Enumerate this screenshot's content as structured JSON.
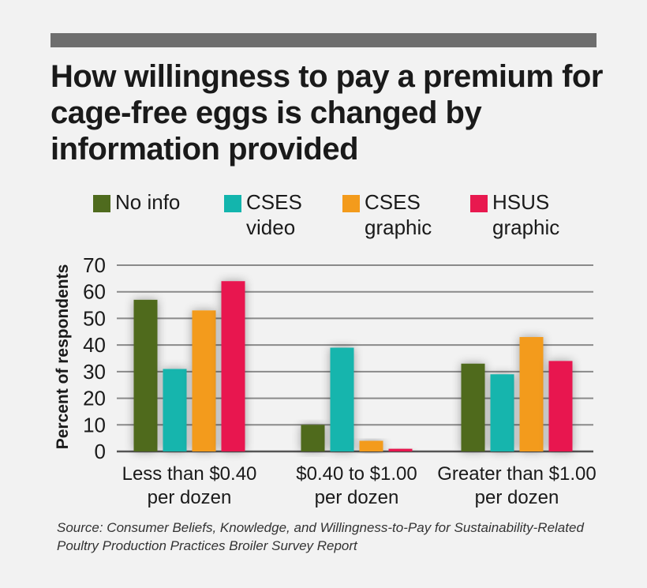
{
  "title": "How willingness to pay a premium for cage-free eggs is changed by information provided",
  "source": "Source: Consumer Beliefs, Knowledge, and Willingness-to-Pay for Sustainability-Related Poultry Production Practices Broiler Survey Report",
  "colors": {
    "no_info": "#4f6b1e",
    "cses_video": "#13b5ad",
    "cses_graphic": "#f39b1c",
    "hsus_graphic": "#e8194f",
    "grid": "#8a8a8a",
    "top_bar": "#6e6e6e"
  },
  "legend": [
    {
      "label": "No info",
      "color_key": "no_info"
    },
    {
      "label": "CSES\nvideo",
      "color_key": "cses_video"
    },
    {
      "label": "CSES\ngraphic",
      "color_key": "cses_graphic"
    },
    {
      "label": "HSUS\ngraphic",
      "color_key": "hsus_graphic"
    }
  ],
  "chart_data": {
    "type": "bar",
    "title": "How willingness to pay a premium for cage-free eggs is changed by information provided",
    "xlabel": "",
    "ylabel": "Percent of respondents",
    "ylim": [
      0,
      70
    ],
    "yticks": [
      0,
      10,
      20,
      30,
      40,
      50,
      60,
      70
    ],
    "grid": true,
    "legend_position": "top",
    "categories": [
      "Less than $0.40\nper dozen",
      "$0.40 to $1.00\nper dozen",
      "Greater than $1.00\nper dozen"
    ],
    "series": [
      {
        "name": "No info",
        "color": "#4f6b1e",
        "values": [
          57,
          10,
          33
        ]
      },
      {
        "name": "CSES video",
        "color": "#13b5ad",
        "values": [
          31,
          39,
          29
        ]
      },
      {
        "name": "CSES graphic",
        "color": "#f39b1c",
        "values": [
          53,
          4,
          43
        ]
      },
      {
        "name": "HSUS graphic",
        "color": "#e8194f",
        "values": [
          64,
          1,
          34
        ]
      }
    ]
  }
}
